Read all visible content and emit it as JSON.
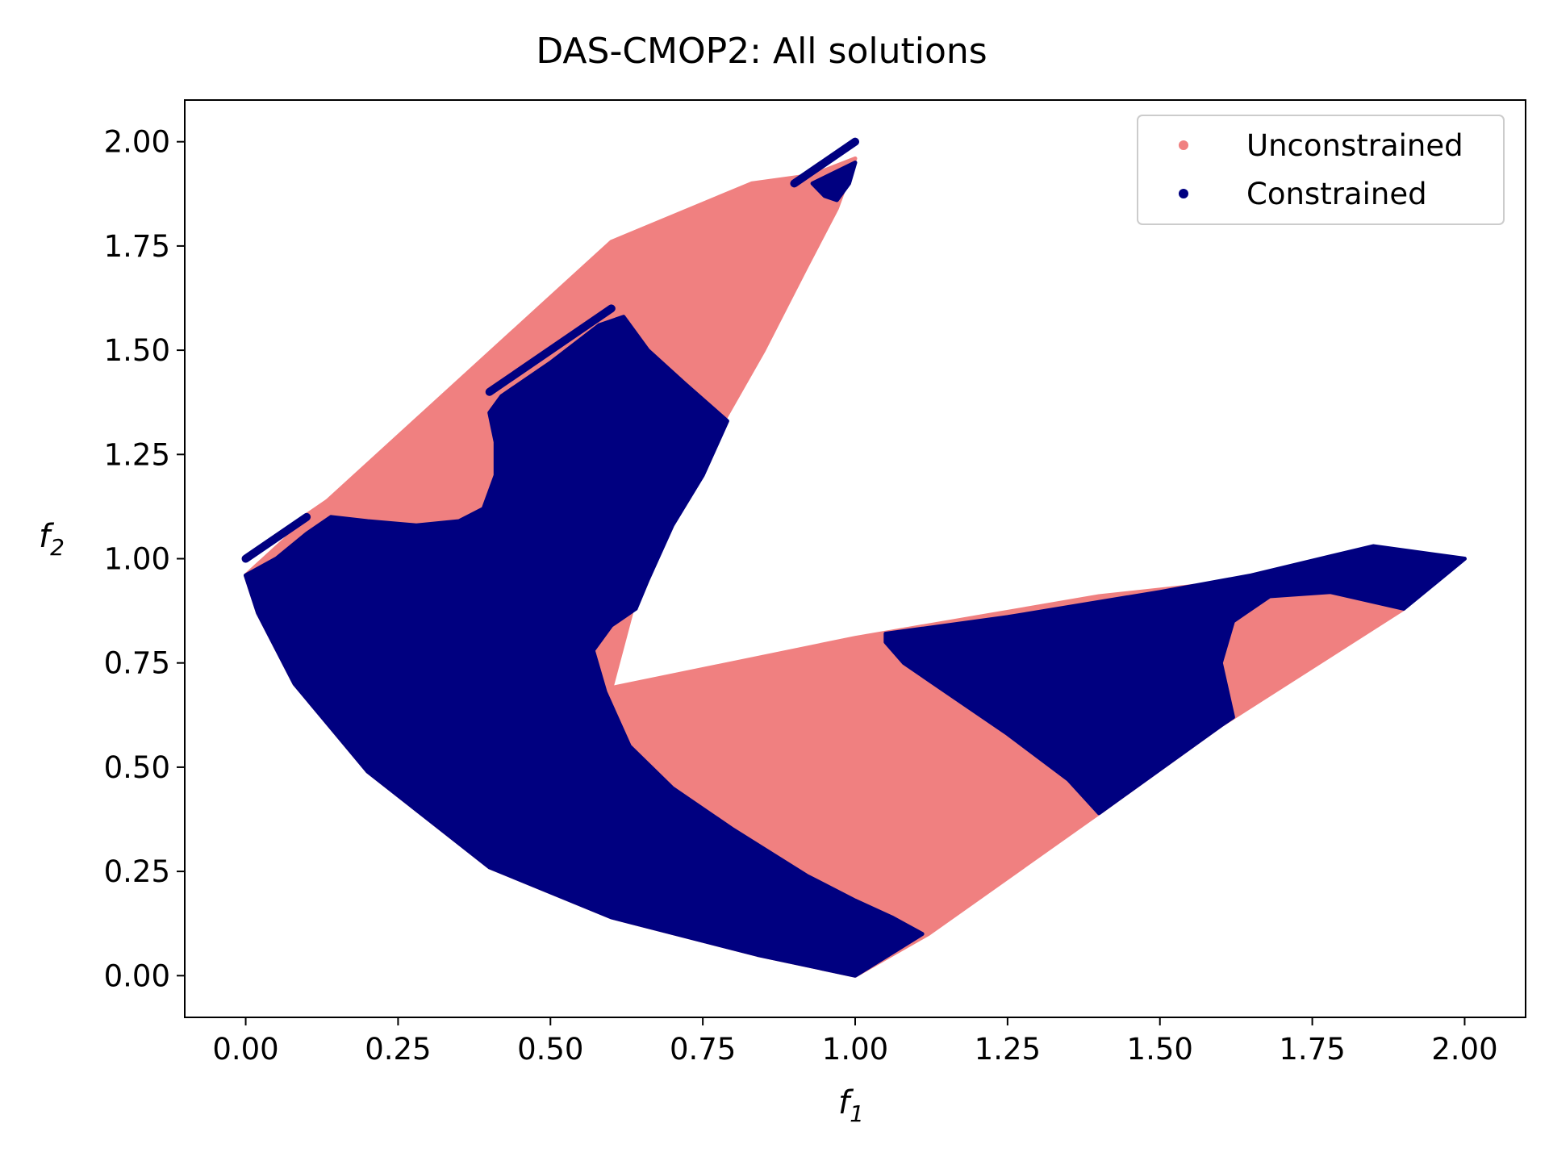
{
  "chart_data": {
    "type": "scatter",
    "title": "DAS-CMOP2: All solutions",
    "xlabel": "f",
    "xlabel_subscript": "1",
    "ylabel": "f",
    "ylabel_subscript": "2",
    "xlim": [
      -0.1,
      2.1
    ],
    "ylim": [
      -0.1,
      2.1
    ],
    "xticks": [
      0.0,
      0.25,
      0.5,
      0.75,
      1.0,
      1.25,
      1.5,
      1.75,
      2.0
    ],
    "xtick_labels": [
      "0.00",
      "0.25",
      "0.50",
      "0.75",
      "1.00",
      "1.25",
      "1.50",
      "1.75",
      "2.00"
    ],
    "yticks": [
      0.0,
      0.25,
      0.5,
      0.75,
      1.0,
      1.25,
      1.5,
      1.75,
      2.0
    ],
    "ytick_labels": [
      "0.00",
      "0.25",
      "0.50",
      "0.75",
      "1.00",
      "1.25",
      "1.50",
      "1.75",
      "2.00"
    ],
    "grid": false,
    "legend_position": "top-right",
    "series": [
      {
        "name": "Unconstrained",
        "color": "#f08080",
        "regions": [
          {
            "description": "main solution region",
            "polygon": [
              [
                0.0,
                0.96
              ],
              [
                0.6,
                1.76
              ],
              [
                0.83,
                1.9
              ],
              [
                0.93,
                1.92
              ],
              [
                1.0,
                1.96
              ],
              [
                0.97,
                1.84
              ],
              [
                0.92,
                1.7
              ],
              [
                0.85,
                1.5
              ],
              [
                0.78,
                1.32
              ],
              [
                0.66,
                1.02
              ],
              [
                0.6,
                0.69
              ],
              [
                1.0,
                0.81
              ],
              [
                1.4,
                0.91
              ],
              [
                1.78,
                0.97
              ],
              [
                1.9,
                0.88
              ],
              [
                1.6,
                0.6
              ],
              [
                1.4,
                0.39
              ],
              [
                1.12,
                0.1
              ],
              [
                1.0,
                0.0
              ],
              [
                0.84,
                0.05
              ],
              [
                0.6,
                0.14
              ],
              [
                0.4,
                0.26
              ],
              [
                0.2,
                0.49
              ],
              [
                0.08,
                0.7
              ],
              [
                0.02,
                0.87
              ]
            ]
          },
          {
            "description": "upper front line",
            "polyline": [
              [
                0.0,
                1.0
              ],
              [
                1.0,
                2.0
              ]
            ]
          }
        ]
      },
      {
        "name": "Constrained",
        "color": "#000080",
        "regions": [
          {
            "description": "left arm and lower body",
            "polygon": [
              [
                0.0,
                0.96
              ],
              [
                0.05,
                1.0
              ],
              [
                0.1,
                1.06
              ],
              [
                0.14,
                1.1
              ],
              [
                0.2,
                1.09
              ],
              [
                0.28,
                1.08
              ],
              [
                0.35,
                1.09
              ],
              [
                0.39,
                1.12
              ],
              [
                0.41,
                1.2
              ],
              [
                0.41,
                1.28
              ],
              [
                0.4,
                1.35
              ],
              [
                0.42,
                1.39
              ],
              [
                0.5,
                1.47
              ],
              [
                0.58,
                1.56
              ],
              [
                0.62,
                1.58
              ],
              [
                0.66,
                1.5
              ],
              [
                0.72,
                1.42
              ],
              [
                0.79,
                1.33
              ],
              [
                0.75,
                1.2
              ],
              [
                0.7,
                1.08
              ],
              [
                0.66,
                0.95
              ],
              [
                0.64,
                0.88
              ],
              [
                0.6,
                0.84
              ],
              [
                0.57,
                0.78
              ],
              [
                0.59,
                0.68
              ],
              [
                0.63,
                0.55
              ],
              [
                0.7,
                0.45
              ],
              [
                0.8,
                0.35
              ],
              [
                0.92,
                0.24
              ],
              [
                1.0,
                0.18
              ],
              [
                1.06,
                0.14
              ],
              [
                1.11,
                0.1
              ],
              [
                1.0,
                0.0
              ],
              [
                0.84,
                0.05
              ],
              [
                0.6,
                0.14
              ],
              [
                0.4,
                0.26
              ],
              [
                0.2,
                0.49
              ],
              [
                0.08,
                0.7
              ],
              [
                0.02,
                0.87
              ]
            ]
          },
          {
            "description": "middle right band",
            "polygon": [
              [
                1.05,
                0.82
              ],
              [
                1.25,
                0.86
              ],
              [
                1.5,
                0.92
              ],
              [
                1.65,
                0.96
              ],
              [
                1.85,
                1.03
              ],
              [
                2.0,
                1.0
              ],
              [
                1.9,
                0.88
              ],
              [
                1.78,
                0.92
              ],
              [
                1.68,
                0.91
              ],
              [
                1.62,
                0.85
              ],
              [
                1.6,
                0.75
              ],
              [
                1.62,
                0.62
              ],
              [
                1.6,
                0.6
              ],
              [
                1.4,
                0.39
              ],
              [
                1.35,
                0.47
              ],
              [
                1.25,
                0.58
              ],
              [
                1.15,
                0.68
              ],
              [
                1.08,
                0.75
              ],
              [
                1.05,
                0.8
              ]
            ]
          },
          {
            "description": "upper front segments",
            "segments": [
              [
                [
                  0.0,
                  1.0
                ],
                [
                  0.1,
                  1.1
                ]
              ],
              [
                [
                  0.4,
                  1.4
                ],
                [
                  0.6,
                  1.6
                ]
              ],
              [
                [
                  0.9,
                  1.9
                ],
                [
                  1.0,
                  2.0
                ]
              ]
            ]
          },
          {
            "description": "top tip cluster",
            "polygon": [
              [
                0.93,
                1.9
              ],
              [
                1.0,
                1.95
              ],
              [
                0.99,
                1.9
              ],
              [
                0.97,
                1.86
              ],
              [
                0.95,
                1.87
              ]
            ]
          }
        ]
      }
    ]
  }
}
